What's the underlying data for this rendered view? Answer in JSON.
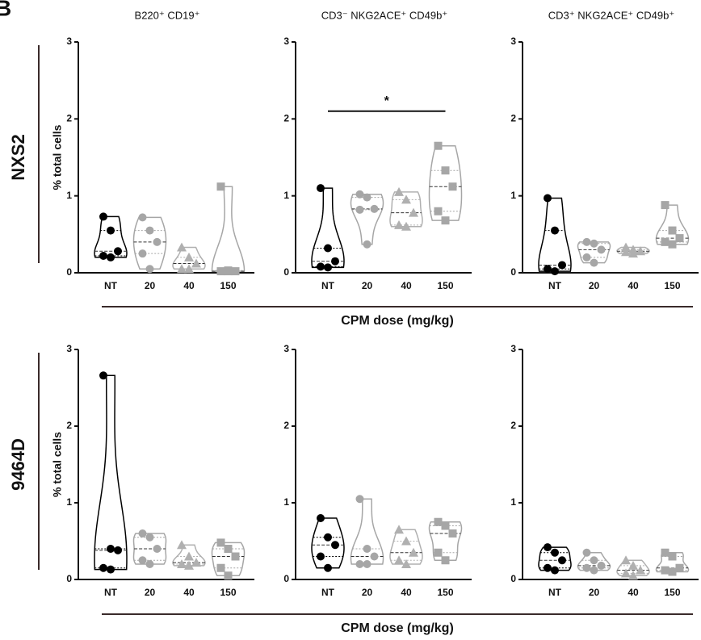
{
  "panel_label": "B",
  "chart_data": [
    {
      "type": "violin",
      "title": "B220⁺ CD19⁺",
      "row_label": "NXS2",
      "ylabel": "% total cells",
      "categories": [
        "NT",
        "20",
        "40",
        "150"
      ],
      "ylim": [
        0,
        3
      ],
      "yticks": [
        0,
        1,
        2,
        3
      ],
      "colors": [
        "#000000",
        "#a6a6a6",
        "#b0b0b0",
        "#a6a6a6"
      ],
      "markers": [
        "circle",
        "circle",
        "triangle",
        "square"
      ],
      "values": [
        [
          0.73,
          0.55,
          0.28,
          0.22,
          0.2
        ],
        [
          0.72,
          0.55,
          0.4,
          0.25,
          0.05
        ],
        [
          0.33,
          0.2,
          0.12,
          0.05,
          0.05
        ],
        [
          1.12,
          0.03,
          0.02,
          0.02,
          0.02
        ]
      ]
    },
    {
      "type": "violin",
      "title": "CD3⁻ NKG2ACE⁺ CD49b⁺",
      "xlabel": "CPM dose (mg/kg)",
      "categories": [
        "NT",
        "20",
        "40",
        "150"
      ],
      "ylim": [
        0,
        3
      ],
      "yticks": [
        0,
        1,
        2,
        3
      ],
      "colors": [
        "#000000",
        "#a6a6a6",
        "#b0b0b0",
        "#a6a6a6"
      ],
      "markers": [
        "circle",
        "circle",
        "triangle",
        "square"
      ],
      "values": [
        [
          1.1,
          0.32,
          0.15,
          0.08,
          0.07
        ],
        [
          1.02,
          0.98,
          0.83,
          0.82,
          0.37
        ],
        [
          1.05,
          0.95,
          0.78,
          0.62,
          0.6
        ],
        [
          1.65,
          1.33,
          1.12,
          0.8,
          0.68
        ]
      ],
      "significance": {
        "label": "*",
        "from": 0,
        "to": 3,
        "y": 2.1
      }
    },
    {
      "type": "violin",
      "title": "CD3⁺ NKG2ACE⁺ CD49b⁺",
      "categories": [
        "NT",
        "20",
        "40",
        "150"
      ],
      "ylim": [
        0,
        3
      ],
      "yticks": [
        0,
        1,
        2,
        3
      ],
      "colors": [
        "#000000",
        "#a6a6a6",
        "#b0b0b0",
        "#a6a6a6"
      ],
      "markers": [
        "circle",
        "circle",
        "triangle",
        "square"
      ],
      "values": [
        [
          0.97,
          0.55,
          0.1,
          0.05,
          0.02
        ],
        [
          0.4,
          0.38,
          0.3,
          0.2,
          0.13
        ],
        [
          0.33,
          0.3,
          0.28,
          0.27,
          0.25
        ],
        [
          0.88,
          0.55,
          0.45,
          0.4,
          0.37
        ]
      ]
    },
    {
      "type": "violin",
      "row_label": "9464D",
      "ylabel": "% total cells",
      "categories": [
        "NT",
        "20",
        "40",
        "150"
      ],
      "ylim": [
        0,
        3
      ],
      "yticks": [
        0,
        1,
        2,
        3
      ],
      "colors": [
        "#000000",
        "#a6a6a6",
        "#b0b0b0",
        "#a6a6a6"
      ],
      "markers": [
        "circle",
        "circle",
        "triangle",
        "square"
      ],
      "values": [
        [
          2.66,
          0.4,
          0.38,
          0.15,
          0.13
        ],
        [
          0.6,
          0.55,
          0.4,
          0.25,
          0.2
        ],
        [
          0.45,
          0.3,
          0.22,
          0.2,
          0.18
        ],
        [
          0.48,
          0.4,
          0.3,
          0.15,
          0.05
        ]
      ]
    },
    {
      "type": "violin",
      "xlabel": "CPM dose (mg/kg)",
      "categories": [
        "NT",
        "20",
        "40",
        "150"
      ],
      "ylim": [
        0,
        3
      ],
      "yticks": [
        0,
        1,
        2,
        3
      ],
      "colors": [
        "#000000",
        "#a6a6a6",
        "#b0b0b0",
        "#a6a6a6"
      ],
      "markers": [
        "circle",
        "circle",
        "triangle",
        "square"
      ],
      "values": [
        [
          0.8,
          0.55,
          0.45,
          0.3,
          0.15
        ],
        [
          1.05,
          0.4,
          0.3,
          0.2,
          0.2
        ],
        [
          0.65,
          0.5,
          0.35,
          0.25,
          0.2
        ],
        [
          0.75,
          0.7,
          0.6,
          0.35,
          0.25
        ]
      ]
    },
    {
      "type": "violin",
      "categories": [
        "NT",
        "20",
        "40",
        "150"
      ],
      "ylim": [
        0,
        3
      ],
      "yticks": [
        0,
        1,
        2,
        3
      ],
      "colors": [
        "#000000",
        "#a6a6a6",
        "#b0b0b0",
        "#a6a6a6"
      ],
      "markers": [
        "circle",
        "circle",
        "triangle",
        "square"
      ],
      "values": [
        [
          0.42,
          0.35,
          0.25,
          0.15,
          0.12
        ],
        [
          0.35,
          0.25,
          0.18,
          0.15,
          0.12
        ],
        [
          0.25,
          0.18,
          0.12,
          0.08,
          0.05
        ],
        [
          0.35,
          0.3,
          0.15,
          0.12,
          0.1
        ]
      ]
    }
  ]
}
